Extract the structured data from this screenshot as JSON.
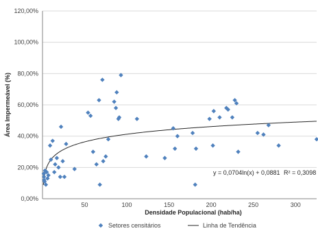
{
  "chart_data": {
    "type": "scatter",
    "xlabel": "Densidade Populacional  (hab/ha)",
    "ylabel": "Área Impermeável (%)",
    "xlim": [
      0,
      325
    ],
    "ylim": [
      0,
      120
    ],
    "x_ticks": [
      0,
      50,
      100,
      150,
      200,
      250,
      300
    ],
    "x_tick_labels": [
      "",
      "50",
      "100",
      "150",
      "200",
      "250",
      "300"
    ],
    "y_ticks": [
      0,
      20,
      40,
      60,
      80,
      100,
      120
    ],
    "y_tick_labels": [
      "0,00%",
      "20,00%",
      "40,00%",
      "60,00%",
      "80,00%",
      "100,00%",
      "120,00%"
    ],
    "grid": "horizontal",
    "legend_position": "bottom",
    "series": [
      {
        "name": "Setores censitários",
        "kind": "scatter",
        "color": "#4F81BD",
        "x": [
          1.5,
          1.8,
          2,
          2.5,
          3,
          4,
          5,
          6,
          7,
          9,
          10,
          12,
          14,
          15,
          17,
          19,
          21,
          22,
          24,
          26,
          28,
          38,
          54,
          57,
          60,
          64,
          67,
          68,
          71,
          72,
          75,
          78,
          85,
          87,
          88,
          90,
          91,
          93,
          112,
          123,
          145,
          155,
          157,
          160,
          178,
          181,
          182,
          198,
          202,
          203,
          210,
          218,
          220,
          225,
          228,
          230,
          232,
          255,
          262,
          268,
          280,
          325
        ],
        "y": [
          16,
          14,
          12,
          11,
          18,
          9,
          17,
          13,
          15,
          34,
          25,
          37,
          17,
          22,
          26,
          20,
          14,
          46,
          24,
          14,
          35,
          19,
          55,
          53,
          30,
          22,
          63,
          9,
          76,
          24,
          27,
          38,
          62,
          58,
          68,
          51,
          52,
          79,
          51,
          27,
          26,
          45,
          32,
          40,
          42,
          9,
          32,
          51,
          34,
          56,
          52,
          58,
          57,
          52,
          63,
          61,
          30,
          42,
          41,
          47,
          34,
          38
        ]
      },
      {
        "name": "Linha de Tendência",
        "kind": "trendline",
        "color": "#262626",
        "model": "log",
        "a": 0.0704,
        "b": 0.0881
      }
    ],
    "annotations": {
      "equation": "y = 0,0704ln(x) + 0,0881",
      "r_squared": "R² = 0,3098"
    }
  }
}
